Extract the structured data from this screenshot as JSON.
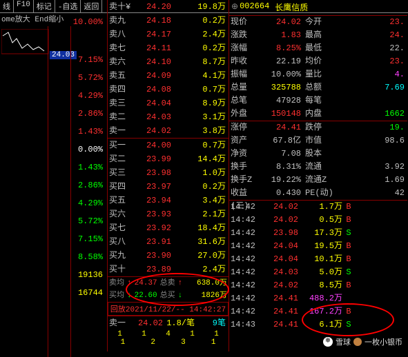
{
  "toolbar": [
    "线",
    "F10",
    "标记",
    "-自选",
    "返回"
  ],
  "ctrl_hint": "ome放大 End缩小",
  "mini_chart_price": "24.03",
  "left_pcts": [
    {
      "v": "10.00%",
      "c": "#ff3030"
    },
    {
      "v": "7.15%",
      "c": "#ff3030"
    },
    {
      "v": "5.72%",
      "c": "#ff3030"
    },
    {
      "v": "4.29%",
      "c": "#ff3030"
    },
    {
      "v": "2.86%",
      "c": "#ff3030"
    },
    {
      "v": "1.43%",
      "c": "#ff3030"
    },
    {
      "v": "0.00%",
      "c": "#ffffff"
    },
    {
      "v": "1.43%",
      "c": "#00ff00"
    },
    {
      "v": "2.86%",
      "c": "#00ff00"
    },
    {
      "v": "4.29%",
      "c": "#00ff00"
    },
    {
      "v": "5.72%",
      "c": "#00ff00"
    },
    {
      "v": "7.15%",
      "c": "#00ff00"
    },
    {
      "v": "8.58%",
      "c": "#00ff00"
    },
    {
      "v": "19136",
      "c": "#ffff00"
    },
    {
      "v": "16744",
      "c": "#ffff00"
    }
  ],
  "asks": [
    {
      "lbl": "卖十¥",
      "p": "24.20",
      "v": "19.8万",
      "pc": "#ff3030"
    },
    {
      "lbl": "卖九",
      "p": "24.18",
      "v": "0.2万",
      "pc": "#ff3030"
    },
    {
      "lbl": "卖八",
      "p": "24.17",
      "v": "2.4万",
      "pc": "#ff3030"
    },
    {
      "lbl": "卖七",
      "p": "24.11",
      "v": "0.2万",
      "pc": "#ff3030"
    },
    {
      "lbl": "卖六",
      "p": "24.10",
      "v": "8.7万",
      "pc": "#ff3030"
    },
    {
      "lbl": "卖五",
      "p": "24.09",
      "v": "4.1万",
      "pc": "#ff3030"
    },
    {
      "lbl": "卖四",
      "p": "24.08",
      "v": "0.7万",
      "pc": "#ff3030"
    },
    {
      "lbl": "卖三",
      "p": "24.04",
      "v": "8.9万",
      "pc": "#ff3030"
    },
    {
      "lbl": "卖二",
      "p": "24.03",
      "v": "3.1万",
      "pc": "#ff3030"
    },
    {
      "lbl": "卖一",
      "p": "24.02",
      "v": "3.8万",
      "pc": "#ff3030"
    }
  ],
  "bids": [
    {
      "lbl": "买一",
      "p": "24.00",
      "v": "0.7万",
      "pc": "#ff3030"
    },
    {
      "lbl": "买二",
      "p": "23.99",
      "v": "14.4万",
      "pc": "#ff3030"
    },
    {
      "lbl": "买三",
      "p": "23.98",
      "v": "1.0万",
      "pc": "#ff3030"
    },
    {
      "lbl": "买四",
      "p": "23.97",
      "v": "0.2万",
      "pc": "#ff3030"
    },
    {
      "lbl": "买五",
      "p": "23.94",
      "v": "3.4万",
      "pc": "#ff3030"
    },
    {
      "lbl": "买六",
      "p": "23.93",
      "v": "2.1万",
      "pc": "#ff3030"
    },
    {
      "lbl": "买七",
      "p": "23.92",
      "v": "18.4万",
      "pc": "#ff3030"
    },
    {
      "lbl": "买八",
      "p": "23.91",
      "v": "31.6万",
      "pc": "#ff3030"
    },
    {
      "lbl": "买九",
      "p": "23.90",
      "v": "27.0万",
      "pc": "#ff3030"
    },
    {
      "lbl": "买十",
      "p": "23.89",
      "v": "2.4万",
      "pc": "#ff3030"
    }
  ],
  "avg": {
    "sell_lbl": "卖均",
    "sell_arrow": "↑",
    "sell_p": "24.37",
    "tot_sell_lbl": "总卖",
    "tot_sell_arrow": "↑",
    "tot_sell_v": "638.0万",
    "buy_lbl": "买均",
    "buy_arrow": "↓",
    "buy_p": "22.60",
    "tot_buy_lbl": "总买",
    "tot_buy_arrow": "↓",
    "tot_buy_v": "1826万"
  },
  "playback": "回放2021/11/22/-- 14:42:27",
  "maiyi": {
    "lbl": "卖一",
    "p": "24.02",
    "r": "1.8/笔",
    "cnt": "9笔"
  },
  "btm_nums_top": [
    "1",
    "1",
    "4",
    "1",
    "1"
  ],
  "btm_nums_bot": [
    "1",
    "2",
    "3",
    "1"
  ],
  "stock": {
    "code": "002664",
    "name": "长鹰信质"
  },
  "info": [
    {
      "k1": "现价",
      "v1": "24.02",
      "c1": "#ff3030",
      "k2": "今开",
      "v2": "23.",
      "c2": "#ff3030"
    },
    {
      "k1": "涨跌",
      "v1": "1.83",
      "c1": "#ff3030",
      "k2": "最高",
      "v2": "24.",
      "c2": "#ff3030"
    },
    {
      "k1": "涨幅",
      "v1": "8.25%",
      "c1": "#ff3030",
      "k2": "最低",
      "v2": "22.",
      "c2": "#c0c0c0"
    },
    {
      "k1": "昨收",
      "v1": "22.19",
      "c1": "#c0c0c0",
      "k2": "均价",
      "v2": "23.",
      "c2": "#ff3030"
    },
    {
      "k1": "振幅",
      "v1": "10.00%",
      "c1": "#c0c0c0",
      "k2": "量比",
      "v2": "4.",
      "c2": "#ff40ff"
    },
    {
      "k1": "总量",
      "v1": "325788",
      "c1": "#ffff00",
      "k2": "总额",
      "v2": "7.69",
      "c2": "#00ffff"
    },
    {
      "k1": "总笔",
      "v1": "47928",
      "c1": "#c0c0c0",
      "k2": "每笔",
      "v2": "",
      "c2": "#c0c0c0"
    },
    {
      "k1": "外盘",
      "v1": "150148",
      "c1": "#ff3030",
      "k2": "内盘",
      "v2": "1662",
      "c2": "#00ff00"
    }
  ],
  "info2": [
    {
      "k1": "涨停",
      "v1": "24.41",
      "c1": "#ff3030",
      "k2": "跌停",
      "v2": "19.",
      "c2": "#00ff00"
    },
    {
      "k1": "资产",
      "v1": "67.8亿",
      "c1": "#c0c0c0",
      "k2": "市值",
      "v2": "98.6",
      "c2": "#c0c0c0"
    },
    {
      "k1": "净资",
      "v1": "7.08",
      "c1": "#c0c0c0",
      "k2": "股本",
      "v2": "",
      "c2": "#c0c0c0"
    },
    {
      "k1": "换手",
      "v1": "8.31%",
      "c1": "#c0c0c0",
      "k2": "流通",
      "v2": "3.92",
      "c2": "#c0c0c0"
    },
    {
      "k1": "换手Z",
      "v1": "19.22%",
      "c1": "#c0c0c0",
      "k2": "流通Z",
      "v2": "1.69",
      "c2": "#c0c0c0"
    },
    {
      "k1": "收益(三)",
      "v1": "0.430",
      "c1": "#c0c0c0",
      "k2": "PE(动)",
      "v2": "42",
      "c2": "#c0c0c0"
    }
  ],
  "ticks": [
    {
      "t": "14:42",
      "p": "24.02",
      "pc": "#ff3030",
      "v": "1.7万",
      "vc": "#ffff00",
      "f": "B",
      "fc": "#ff3030"
    },
    {
      "t": "14:42",
      "p": "24.02",
      "pc": "#ff3030",
      "v": "0.5万",
      "vc": "#ffff00",
      "f": "B",
      "fc": "#ff3030"
    },
    {
      "t": "14:42",
      "p": "23.98",
      "pc": "#ff3030",
      "v": "17.3万",
      "vc": "#ffff00",
      "f": "S",
      "fc": "#00ff00"
    },
    {
      "t": "14:42",
      "p": "24.04",
      "pc": "#ff3030",
      "v": "19.5万",
      "vc": "#ffff00",
      "f": "B",
      "fc": "#ff3030"
    },
    {
      "t": "14:42",
      "p": "24.04",
      "pc": "#ff3030",
      "v": "10.1万",
      "vc": "#ffff00",
      "f": "B",
      "fc": "#ff3030"
    },
    {
      "t": "14:42",
      "p": "24.03",
      "pc": "#ff3030",
      "v": "5.0万",
      "vc": "#ffff00",
      "f": "S",
      "fc": "#00ff00"
    },
    {
      "t": "14:42",
      "p": "24.02",
      "pc": "#ff3030",
      "v": "8.5万",
      "vc": "#ffff00",
      "f": "B",
      "fc": "#ff3030"
    },
    {
      "t": "14:42",
      "p": "24.41",
      "pc": "#ff3030",
      "v": "488.2万",
      "vc": "#ff40ff",
      "f": "",
      "fc": ""
    },
    {
      "t": "14:42",
      "p": "24.41",
      "pc": "#ff3030",
      "v": "167.2万",
      "vc": "#ff40ff",
      "f": "B",
      "fc": "#ff3030"
    },
    {
      "t": "14:43",
      "p": "24.41",
      "pc": "#ff3030",
      "v": "6.1万",
      "vc": "#ffff00",
      "f": "S",
      "fc": "#00ff00"
    }
  ],
  "watermark": {
    "site": "雪球",
    "user": "一枚小银币"
  }
}
